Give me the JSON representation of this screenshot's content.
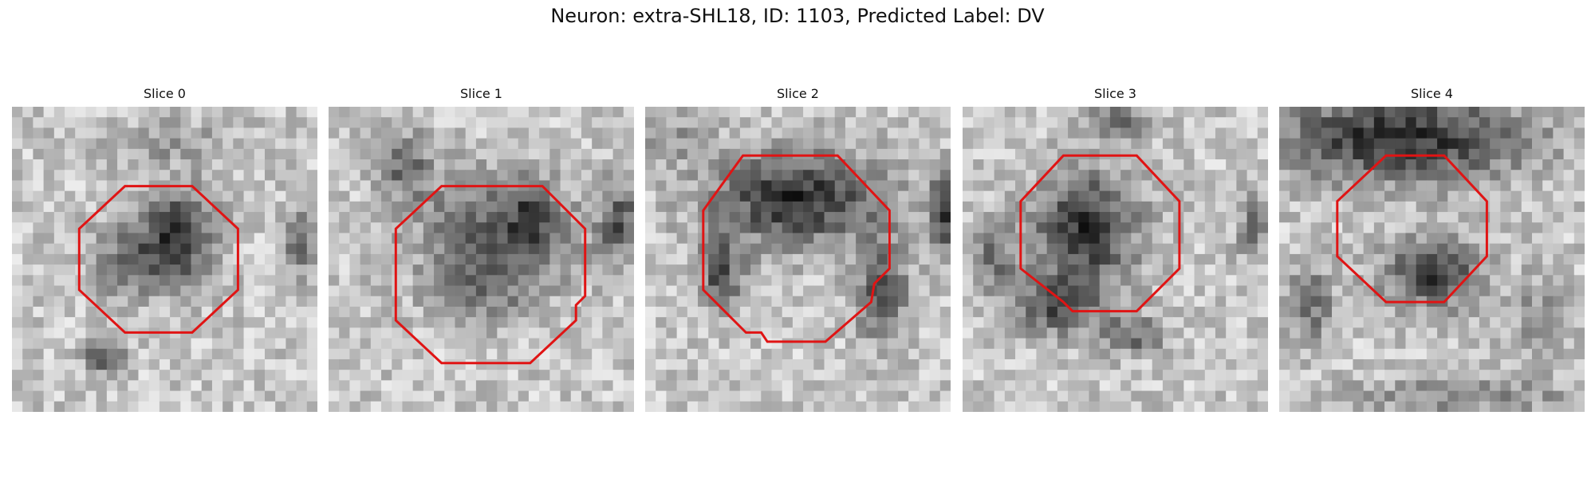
{
  "figure": {
    "title": "Neuron: extra-SHL18, ID: 1103, Predicted Label: DV"
  },
  "panels": [
    {
      "title": "Slice 0"
    },
    {
      "title": "Slice 1"
    },
    {
      "title": "Slice 2"
    },
    {
      "title": "Slice 3"
    },
    {
      "title": "Slice 4"
    }
  ],
  "colors": {
    "contour": "#e01414",
    "background": "#ffffff"
  }
}
